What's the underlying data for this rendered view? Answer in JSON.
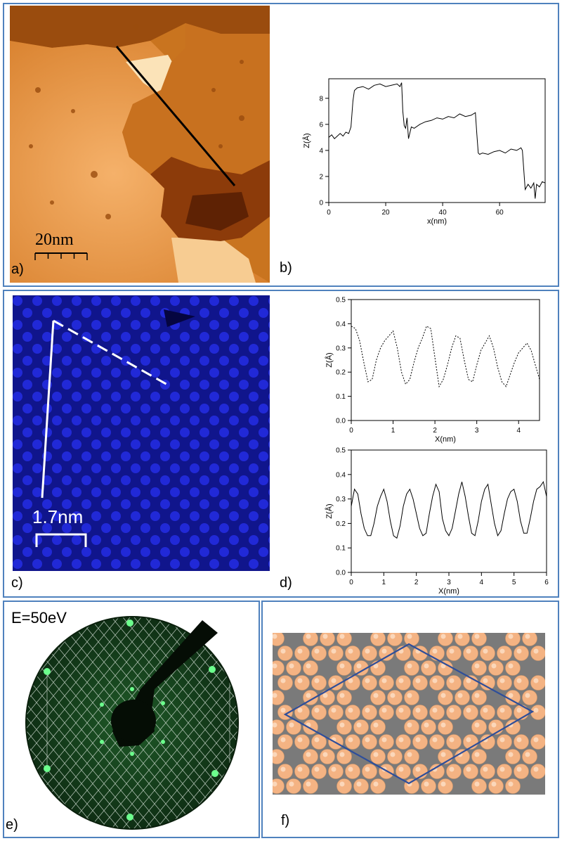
{
  "panels": {
    "a": {
      "label": "a)",
      "scalebar": "20nm"
    },
    "b": {
      "label": "b)"
    },
    "c": {
      "label": "c)",
      "scalebar": "1.7nm"
    },
    "d": {
      "label": "d)"
    },
    "e": {
      "label": "e)",
      "energy": "E=50eV"
    },
    "f": {
      "label": "f)"
    }
  },
  "chart_data": [
    {
      "type": "line",
      "panel": "b",
      "xlabel": "x(nm)",
      "ylabel": "Z(Å)",
      "xlim": [
        0,
        76
      ],
      "ylim": [
        0,
        9.5
      ],
      "xticks": [
        0,
        20,
        40,
        60
      ],
      "yticks": [
        0,
        2,
        4,
        6,
        8
      ],
      "style": "solid",
      "x": [
        0,
        1,
        2,
        3,
        4,
        5,
        6,
        7,
        7.8,
        8.5,
        9,
        10,
        12,
        14,
        16,
        18,
        20,
        22,
        24,
        25,
        25.6,
        26,
        26.5,
        27,
        27.5,
        28,
        29,
        30,
        32,
        34,
        36,
        38,
        40,
        42,
        44,
        46,
        48,
        50,
        51.5,
        52,
        52.5,
        53,
        54,
        56,
        58,
        60,
        62,
        64,
        66,
        67.5,
        68,
        68.5,
        69,
        70,
        71,
        72,
        72.5,
        73,
        74,
        75,
        76
      ],
      "y": [
        5.0,
        5.2,
        4.9,
        5.1,
        5.3,
        5.1,
        5.4,
        5.3,
        5.8,
        7.8,
        8.6,
        8.8,
        8.9,
        8.7,
        9.0,
        9.1,
        8.9,
        9.0,
        9.1,
        8.9,
        9.2,
        7.0,
        5.9,
        5.7,
        6.5,
        4.9,
        5.8,
        5.7,
        6.0,
        6.2,
        6.3,
        6.5,
        6.4,
        6.6,
        6.5,
        6.8,
        6.6,
        6.7,
        6.9,
        5.3,
        3.8,
        3.7,
        3.8,
        3.7,
        3.9,
        4.0,
        3.8,
        4.1,
        4.0,
        4.2,
        4.0,
        2.5,
        1.0,
        1.4,
        1.1,
        1.5,
        0.3,
        1.4,
        1.2,
        1.6,
        1.5
      ]
    },
    {
      "type": "line",
      "panel": "d-top",
      "xlabel": "X(nm)",
      "ylabel": "Z(Å)",
      "xlim": [
        0,
        4.5
      ],
      "ylim": [
        0,
        0.5
      ],
      "xticks": [
        0,
        1,
        2,
        3,
        4
      ],
      "yticks": [
        0.0,
        0.1,
        0.2,
        0.3,
        0.4,
        0.5
      ],
      "style": "dotted",
      "x": [
        0,
        0.1,
        0.2,
        0.3,
        0.4,
        0.5,
        0.6,
        0.7,
        0.8,
        0.9,
        1.0,
        1.1,
        1.2,
        1.3,
        1.4,
        1.5,
        1.6,
        1.7,
        1.8,
        1.9,
        2.0,
        2.1,
        2.2,
        2.3,
        2.4,
        2.5,
        2.6,
        2.7,
        2.8,
        2.9,
        3.0,
        3.1,
        3.2,
        3.3,
        3.4,
        3.5,
        3.6,
        3.7,
        3.8,
        3.9,
        4.0,
        4.1,
        4.2,
        4.3,
        4.4,
        4.5
      ],
      "y": [
        0.39,
        0.38,
        0.33,
        0.24,
        0.16,
        0.17,
        0.25,
        0.3,
        0.33,
        0.35,
        0.37,
        0.3,
        0.2,
        0.15,
        0.17,
        0.24,
        0.3,
        0.34,
        0.39,
        0.38,
        0.26,
        0.14,
        0.17,
        0.23,
        0.3,
        0.35,
        0.34,
        0.25,
        0.17,
        0.16,
        0.23,
        0.29,
        0.32,
        0.35,
        0.3,
        0.22,
        0.16,
        0.14,
        0.19,
        0.24,
        0.28,
        0.3,
        0.32,
        0.29,
        0.23,
        0.17
      ]
    },
    {
      "type": "line",
      "panel": "d-bottom",
      "xlabel": "X(nm)",
      "ylabel": "Z(Å)",
      "xlim": [
        0,
        6
      ],
      "ylim": [
        0,
        0.5
      ],
      "xticks": [
        0,
        1,
        2,
        3,
        4,
        5,
        6
      ],
      "yticks": [
        0.0,
        0.1,
        0.2,
        0.3,
        0.4,
        0.5
      ],
      "style": "solid",
      "x": [
        0,
        0.1,
        0.2,
        0.3,
        0.4,
        0.5,
        0.6,
        0.7,
        0.8,
        0.9,
        1.0,
        1.1,
        1.2,
        1.3,
        1.4,
        1.5,
        1.6,
        1.7,
        1.8,
        1.9,
        2.0,
        2.1,
        2.2,
        2.3,
        2.4,
        2.5,
        2.6,
        2.7,
        2.8,
        2.9,
        3.0,
        3.1,
        3.2,
        3.3,
        3.4,
        3.5,
        3.6,
        3.7,
        3.8,
        3.9,
        4.0,
        4.1,
        4.2,
        4.3,
        4.4,
        4.5,
        4.6,
        4.7,
        4.8,
        4.9,
        5.0,
        5.1,
        5.2,
        5.3,
        5.4,
        5.5,
        5.6,
        5.7,
        5.8,
        5.9,
        6.0
      ],
      "y": [
        0.27,
        0.34,
        0.32,
        0.24,
        0.18,
        0.15,
        0.15,
        0.2,
        0.27,
        0.31,
        0.34,
        0.29,
        0.21,
        0.15,
        0.14,
        0.19,
        0.27,
        0.32,
        0.34,
        0.3,
        0.24,
        0.18,
        0.15,
        0.16,
        0.24,
        0.31,
        0.36,
        0.33,
        0.22,
        0.17,
        0.15,
        0.18,
        0.25,
        0.32,
        0.37,
        0.31,
        0.23,
        0.16,
        0.15,
        0.21,
        0.29,
        0.34,
        0.36,
        0.28,
        0.2,
        0.15,
        0.17,
        0.24,
        0.3,
        0.33,
        0.34,
        0.29,
        0.21,
        0.16,
        0.16,
        0.22,
        0.29,
        0.34,
        0.35,
        0.37,
        0.31
      ]
    }
  ],
  "colors": {
    "frame": "#4f81bd",
    "stm_orange": "#e08a3a",
    "stm_blue": "#1b1fb8",
    "leed_green": "#2bd45a",
    "atom_orange": "#f4b383",
    "atom_gray": "#8a8a8a",
    "unit_cell": "#2e4e9a"
  }
}
